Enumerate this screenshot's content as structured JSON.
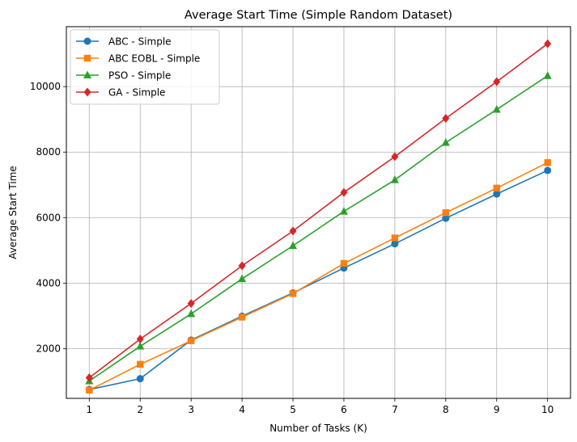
{
  "chart_data": {
    "type": "line",
    "title": "Average Start Time (Simple Random Dataset)",
    "xlabel": "Number of Tasks (K)",
    "ylabel": "Average Start Time",
    "x": [
      1,
      2,
      3,
      4,
      5,
      6,
      7,
      8,
      9,
      10
    ],
    "xlim": [
      0.55,
      10.45
    ],
    "ylim": [
      480,
      11830
    ],
    "xticks": [
      "1",
      "2",
      "3",
      "4",
      "5",
      "6",
      "7",
      "8",
      "9",
      "10"
    ],
    "yticks": [
      2000,
      4000,
      6000,
      8000,
      10000
    ],
    "grid": true,
    "legend_position": "top-left",
    "series": [
      {
        "name": "ABC - Simple",
        "color": "#1f77b4",
        "marker": "circle",
        "values": [
          750,
          1080,
          2260,
          2990,
          3700,
          4460,
          5200,
          5980,
          6720,
          7440
        ]
      },
      {
        "name": "ABC EOBL - Simple",
        "color": "#ff7f0e",
        "marker": "square",
        "values": [
          730,
          1520,
          2240,
          2960,
          3680,
          4600,
          5380,
          6150,
          6900,
          7680
        ]
      },
      {
        "name": "PSO - Simple",
        "color": "#2ca02c",
        "marker": "triangle",
        "values": [
          1010,
          2070,
          3060,
          4130,
          5140,
          6190,
          7150,
          8290,
          9300,
          10330
        ]
      },
      {
        "name": "GA - Simple",
        "color": "#d62728",
        "marker": "diamond",
        "values": [
          1110,
          2290,
          3380,
          4530,
          5590,
          6770,
          7860,
          9030,
          10150,
          11310
        ]
      }
    ]
  }
}
